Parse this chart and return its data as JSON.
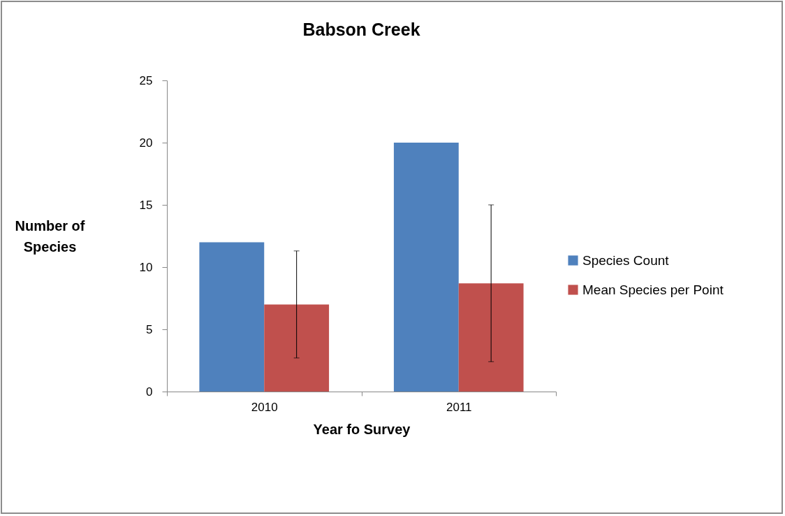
{
  "chart_data": {
    "type": "bar",
    "title": "Babson Creek",
    "xlabel": "Year fo Survey",
    "ylabel": "Number of Species",
    "categories": [
      "2010",
      "2011"
    ],
    "series": [
      {
        "name": "Species Count",
        "color": "#4f81bd",
        "values": [
          12,
          20
        ]
      },
      {
        "name": "Mean Species per Point",
        "color": "#c0504d",
        "values": [
          7.0,
          8.7
        ],
        "errors": [
          4.3,
          6.3
        ]
      }
    ],
    "ylim": [
      0,
      25
    ],
    "yticks": [
      0,
      5,
      10,
      15,
      20,
      25
    ],
    "grid": false,
    "legend": "right"
  }
}
